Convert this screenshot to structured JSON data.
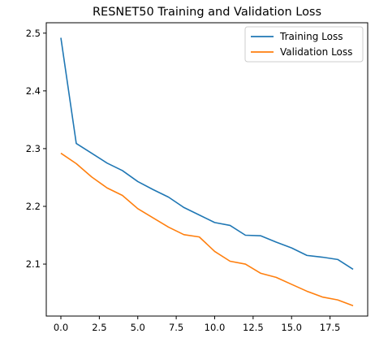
{
  "chart_data": {
    "type": "line",
    "title": "RESNET50 Training and Validation Loss",
    "xlabel": "",
    "ylabel": "",
    "xlim": [
      -0.95,
      19.95
    ],
    "ylim": [
      2.01,
      2.518
    ],
    "xticks": [
      0.0,
      2.5,
      5.0,
      7.5,
      10.0,
      12.5,
      15.0,
      17.5
    ],
    "xtick_labels": [
      "0.0",
      "2.5",
      "5.0",
      "7.5",
      "10.0",
      "12.5",
      "15.0",
      "17.5"
    ],
    "yticks": [
      2.1,
      2.2,
      2.3,
      2.4,
      2.5
    ],
    "ytick_labels": [
      "2.1",
      "2.2",
      "2.3",
      "2.4",
      "2.5"
    ],
    "grid": false,
    "legend_position": "top-right",
    "x": [
      0,
      1,
      2,
      3,
      4,
      5,
      6,
      7,
      8,
      9,
      10,
      11,
      12,
      13,
      14,
      15,
      16,
      17,
      18,
      19
    ],
    "series": [
      {
        "name": "Training Loss",
        "color": "#1f77b4",
        "values": [
          2.492,
          2.309,
          2.292,
          2.275,
          2.262,
          2.243,
          2.229,
          2.216,
          2.198,
          2.185,
          2.172,
          2.167,
          2.15,
          2.149,
          2.138,
          2.128,
          2.115,
          2.112,
          2.108,
          2.091
        ]
      },
      {
        "name": "Validation Loss",
        "color": "#ff7f0e",
        "values": [
          2.292,
          2.274,
          2.251,
          2.232,
          2.219,
          2.196,
          2.18,
          2.164,
          2.151,
          2.147,
          2.122,
          2.105,
          2.1,
          2.084,
          2.077,
          2.065,
          2.053,
          2.043,
          2.038,
          2.028
        ]
      }
    ]
  }
}
